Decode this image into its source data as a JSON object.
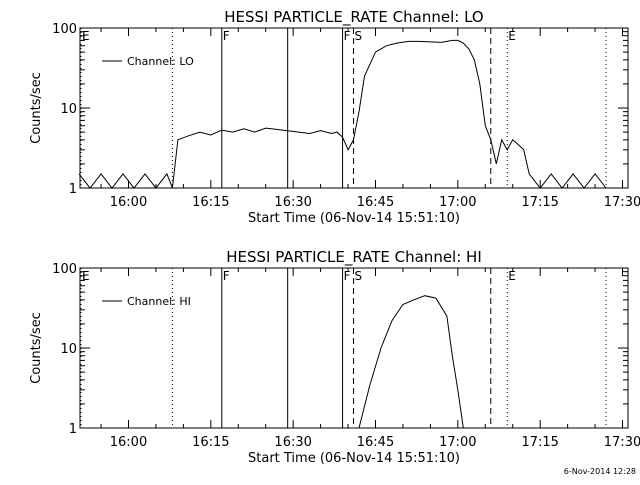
{
  "chart_data": [
    {
      "type": "line",
      "title": "HESSI PARTICLE_RATE Channel: LO",
      "xlabel": "Start Time (06-Nov-14 15:51:10)",
      "ylabel": "Counts/sec",
      "y_scale": "log",
      "ylim": [
        1,
        100
      ],
      "xlim_minutes": [
        "15:51",
        "17:31"
      ],
      "x_ticks": [
        "16:00",
        "16:15",
        "16:30",
        "16:45",
        "17:00",
        "17:15",
        "17:30"
      ],
      "y_ticks": [
        "1",
        "10",
        "100"
      ],
      "legend": {
        "label": "Channel: LO",
        "placement": "top-left"
      },
      "vertical_markers": [
        {
          "time": "15:51",
          "label": "E",
          "style": "dotted"
        },
        {
          "time": "16:08",
          "label": "",
          "style": "dotted"
        },
        {
          "time": "16:17",
          "label": "F",
          "style": "solid"
        },
        {
          "time": "16:29",
          "label": "",
          "style": "solid"
        },
        {
          "time": "16:39",
          "label": "F",
          "style": "solid"
        },
        {
          "time": "16:41",
          "label": "S",
          "style": "dashed"
        },
        {
          "time": "17:06",
          "label": "",
          "style": "dashed"
        },
        {
          "time": "17:09",
          "label": "E",
          "style": "dotted"
        },
        {
          "time": "17:27",
          "label": "",
          "style": "dotted"
        }
      ],
      "series": [
        {
          "name": "Channel: LO",
          "x": [
            "15:51",
            "15:53",
            "15:55",
            "15:57",
            "15:59",
            "16:01",
            "16:03",
            "16:05",
            "16:07",
            "16:08",
            "16:09",
            "16:11",
            "16:13",
            "16:15",
            "16:17",
            "16:19",
            "16:21",
            "16:23",
            "16:25",
            "16:27",
            "16:29",
            "16:31",
            "16:33",
            "16:35",
            "16:37",
            "16:38",
            "16:39",
            "16:40",
            "16:41",
            "16:42",
            "16:43",
            "16:45",
            "16:47",
            "16:49",
            "16:51",
            "16:53",
            "16:55",
            "16:57",
            "16:59",
            "17:00",
            "17:01",
            "17:02",
            "17:03",
            "17:04",
            "17:05",
            "17:06",
            "17:07",
            "17:08",
            "17:09",
            "17:10",
            "17:11",
            "17:12",
            "17:13",
            "17:15",
            "17:17",
            "17:19",
            "17:21",
            "17:23",
            "17:25",
            "17:27"
          ],
          "y": [
            1.5,
            1.0,
            1.5,
            1.0,
            1.5,
            1.0,
            1.5,
            1.0,
            1.5,
            1.0,
            4.0,
            4.5,
            5.0,
            4.6,
            5.3,
            5.0,
            5.5,
            5.0,
            5.6,
            5.4,
            5.2,
            5.0,
            4.8,
            5.2,
            4.8,
            5.0,
            4.3,
            3.0,
            4.0,
            9.0,
            25,
            50,
            60,
            65,
            68,
            68,
            67,
            66,
            70,
            70,
            65,
            55,
            40,
            20,
            6,
            4,
            2,
            4,
            3,
            4,
            3.5,
            3,
            1.5,
            1.0,
            1.5,
            1.0,
            1.5,
            1.0,
            1.5,
            1.0
          ]
        }
      ]
    },
    {
      "type": "line",
      "title": "HESSI PARTICLE_RATE Channel: HI",
      "xlabel": "Start Time (06-Nov-14 15:51:10)",
      "ylabel": "Counts/sec",
      "y_scale": "log",
      "ylim": [
        1,
        100
      ],
      "xlim_minutes": [
        "15:51",
        "17:31"
      ],
      "x_ticks": [
        "16:00",
        "16:15",
        "16:30",
        "16:45",
        "17:00",
        "17:15",
        "17:30"
      ],
      "y_ticks": [
        "1",
        "10",
        "100"
      ],
      "legend": {
        "label": "Channel: HI",
        "placement": "top-left"
      },
      "vertical_markers": [
        {
          "time": "15:51",
          "label": "E",
          "style": "dotted"
        },
        {
          "time": "16:08",
          "label": "",
          "style": "dotted"
        },
        {
          "time": "16:17",
          "label": "F",
          "style": "solid"
        },
        {
          "time": "16:29",
          "label": "",
          "style": "solid"
        },
        {
          "time": "16:39",
          "label": "F",
          "style": "solid"
        },
        {
          "time": "16:41",
          "label": "S",
          "style": "dashed"
        },
        {
          "time": "17:06",
          "label": "",
          "style": "dashed"
        },
        {
          "time": "17:09",
          "label": "E",
          "style": "dotted"
        },
        {
          "time": "17:27",
          "label": "",
          "style": "dotted"
        }
      ],
      "series": [
        {
          "name": "Channel: HI",
          "x": [
            "16:42",
            "16:44",
            "16:46",
            "16:48",
            "16:50",
            "16:52",
            "16:54",
            "16:56",
            "16:58",
            "16:59",
            "17:00",
            "17:01"
          ],
          "y": [
            1.0,
            3.5,
            10,
            22,
            35,
            40,
            45,
            42,
            25,
            8,
            3,
            1.0
          ]
        }
      ]
    }
  ],
  "footer": {
    "timestamp": "6-Nov-2014 12:28"
  }
}
